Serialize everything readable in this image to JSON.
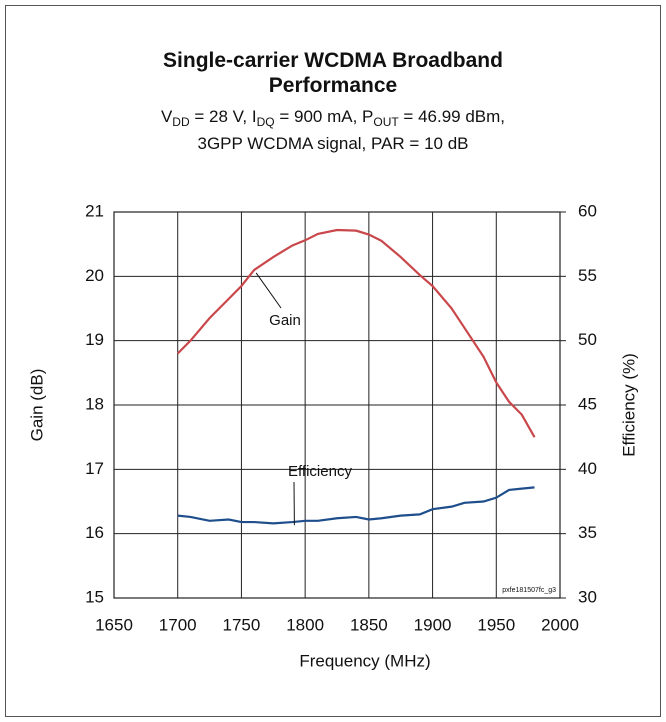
{
  "chart_data": {
    "type": "line",
    "title": "Single-carrier WCDMA Broadband Performance",
    "subtitle": [
      [
        {
          "t": "V"
        },
        {
          "t": "DD",
          "sub": true
        },
        {
          "t": " = 28 V, I"
        },
        {
          "t": "DQ",
          "sub": true
        },
        {
          "t": " = 900 mA, P"
        },
        {
          "t": "OUT",
          "sub": true
        },
        {
          "t": " = 46.99 dBm,"
        }
      ],
      [
        {
          "t": "3GPP WCDMA signal, PAR = 10 dB"
        }
      ]
    ],
    "xlabel": "Frequency (MHz)",
    "ylabel": "Gain (dB)",
    "y2label": "Efficiency (%)",
    "footnote": "pxfe181507fc_g3",
    "x": [
      1700,
      1710,
      1725,
      1740,
      1750,
      1760,
      1775,
      1790,
      1800,
      1810,
      1825,
      1840,
      1850,
      1860,
      1875,
      1890,
      1900,
      1915,
      1925,
      1940,
      1950,
      1960,
      1970,
      1980
    ],
    "series": [
      {
        "name": "Gain",
        "color": "#c9474b",
        "axis": "y",
        "values": [
          18.8,
          19.0,
          19.35,
          19.65,
          19.85,
          20.1,
          20.3,
          20.48,
          20.56,
          20.66,
          20.72,
          20.71,
          20.65,
          20.55,
          20.3,
          20.02,
          19.85,
          19.5,
          19.2,
          18.75,
          18.35,
          18.05,
          17.85,
          17.5
        ]
      },
      {
        "name": "Efficiency",
        "color": "#1f4e8c",
        "axis": "y2",
        "values": [
          36.4,
          36.3,
          36.0,
          36.1,
          35.9,
          35.9,
          35.8,
          35.9,
          36.0,
          36.0,
          36.2,
          36.3,
          36.1,
          36.2,
          36.4,
          36.5,
          36.9,
          37.1,
          37.4,
          37.5,
          37.8,
          38.4,
          38.5,
          38.6
        ]
      }
    ],
    "annotations": [
      {
        "text": "Gain",
        "series": 0
      },
      {
        "text": "Efficiency",
        "series": 1
      }
    ],
    "xlim": [
      1650,
      2000
    ],
    "xticks": [
      1650,
      1700,
      1750,
      1800,
      1850,
      1900,
      1950,
      2000
    ],
    "ylim": [
      15,
      21
    ],
    "yticks": [
      15,
      16,
      17,
      18,
      19,
      20,
      21
    ],
    "y2lim": [
      30,
      60
    ],
    "y2ticks": [
      30,
      35,
      40,
      45,
      50,
      55,
      60
    ],
    "grid": true
  }
}
